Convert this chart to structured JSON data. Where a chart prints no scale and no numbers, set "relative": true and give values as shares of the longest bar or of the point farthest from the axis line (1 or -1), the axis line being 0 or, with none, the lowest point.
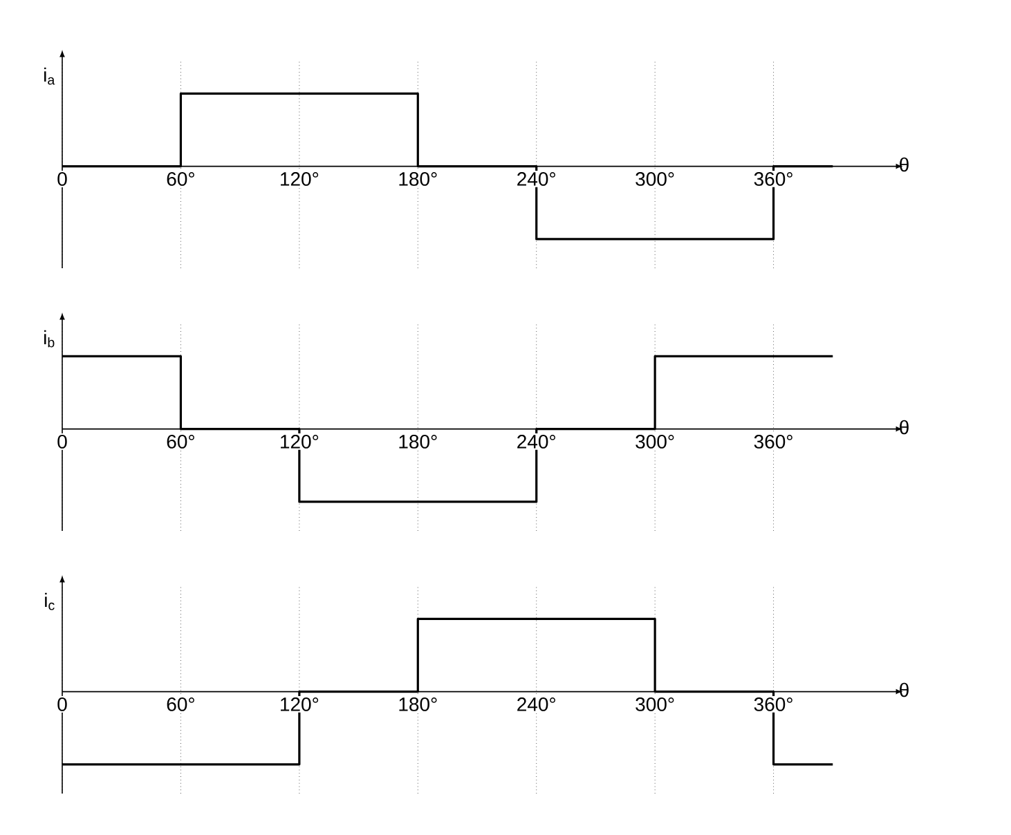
{
  "chart_data": [
    {
      "type": "step",
      "relative": true,
      "ylabel": "i$_{a}$",
      "xlabel": "θ",
      "color": "#000000",
      "grid": "x",
      "x": [
        0,
        60,
        180,
        240,
        360,
        390
      ],
      "values": [
        0,
        1,
        0,
        -1,
        0,
        0
      ],
      "xlim": [
        0,
        420
      ],
      "xticks": [
        {
          "value": 0,
          "label": "0"
        },
        {
          "value": 60,
          "label": "60°"
        },
        {
          "value": 120,
          "label": "120°"
        },
        {
          "value": 180,
          "label": "180°"
        },
        {
          "value": 240,
          "label": "240°"
        },
        {
          "value": 300,
          "label": "300°"
        },
        {
          "value": 360,
          "label": "360°"
        }
      ]
    },
    {
      "type": "step",
      "relative": true,
      "ylabel": "i$_{b}$",
      "xlabel": "θ",
      "color": "#000000",
      "grid": "x",
      "x": [
        0,
        60,
        120,
        240,
        300,
        390
      ],
      "values": [
        1,
        0,
        -1,
        0,
        1,
        1
      ],
      "xlim": [
        0,
        420
      ],
      "xticks": [
        {
          "value": 0,
          "label": "0"
        },
        {
          "value": 60,
          "label": "60°"
        },
        {
          "value": 120,
          "label": "120°"
        },
        {
          "value": 180,
          "label": "180°"
        },
        {
          "value": 240,
          "label": "240°"
        },
        {
          "value": 300,
          "label": "300°"
        },
        {
          "value": 360,
          "label": "360°"
        }
      ]
    },
    {
      "type": "step",
      "relative": true,
      "ylabel": "i$_{c}$",
      "xlabel": "θ",
      "color": "#000000",
      "grid": "x",
      "x": [
        0,
        120,
        180,
        300,
        360,
        390
      ],
      "values": [
        -1,
        0,
        1,
        0,
        -1,
        -1
      ],
      "xlim": [
        0,
        420
      ],
      "xticks": [
        {
          "value": 0,
          "label": "0"
        },
        {
          "value": 60,
          "label": "60°"
        },
        {
          "value": 120,
          "label": "120°"
        },
        {
          "value": 180,
          "label": "180°"
        },
        {
          "value": 240,
          "label": "240°"
        },
        {
          "value": 300,
          "label": "300°"
        },
        {
          "value": 360,
          "label": "360°"
        }
      ]
    }
  ]
}
